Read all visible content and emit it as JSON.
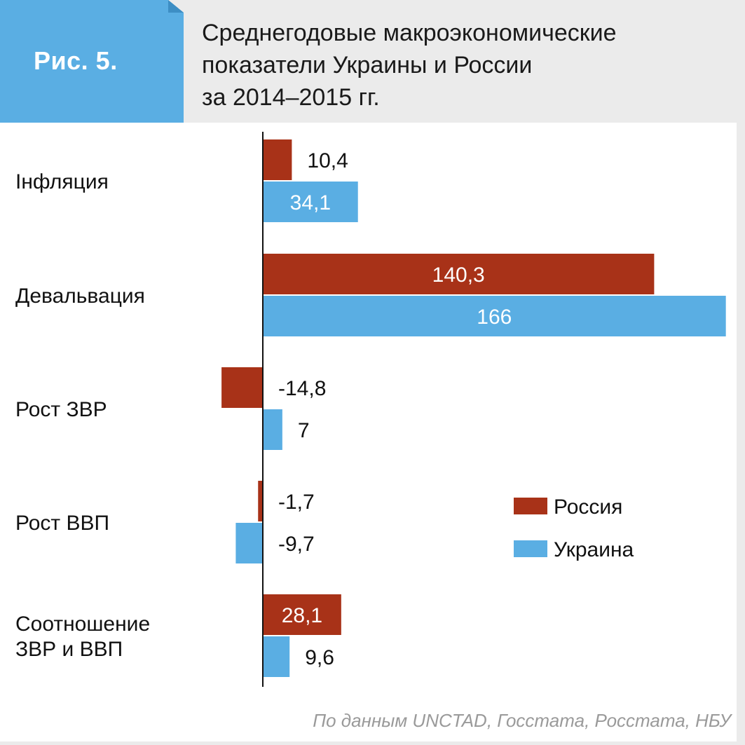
{
  "figure": {
    "label": "Рис. 5.",
    "title": "Среднегодовые макроэкономические\nпоказатели Украины и России\nза 2014–2015 гг.",
    "source": "По данным UNCTAD, Госстата, Росстата, НБУ"
  },
  "colors": {
    "russia": "#a83218",
    "ukraine": "#5aaee3",
    "badge": "#5aaee3",
    "header_bg": "#ebebeb"
  },
  "chart_data": {
    "type": "bar",
    "orientation": "horizontal",
    "categories": [
      [
        "Інфляция"
      ],
      [
        "Девальвация"
      ],
      [
        "Рост ЗВР"
      ],
      [
        "Рост ВВП"
      ],
      [
        "Соотношение",
        "ЗВР и ВВП"
      ]
    ],
    "series": [
      {
        "name": "Россия",
        "values": [
          10.4,
          140.3,
          -14.8,
          -1.7,
          28.1
        ],
        "labels": [
          "10,4",
          "140,3",
          "-14,8",
          "-1,7",
          "28,1"
        ]
      },
      {
        "name": "Украина",
        "values": [
          34.1,
          166,
          7,
          -9.7,
          9.6
        ],
        "labels": [
          "34,1",
          "166",
          "7",
          "-9,7",
          "9,6"
        ]
      }
    ],
    "xlim": [
      -15,
      166
    ],
    "legend": "right-middle",
    "grid": false
  }
}
